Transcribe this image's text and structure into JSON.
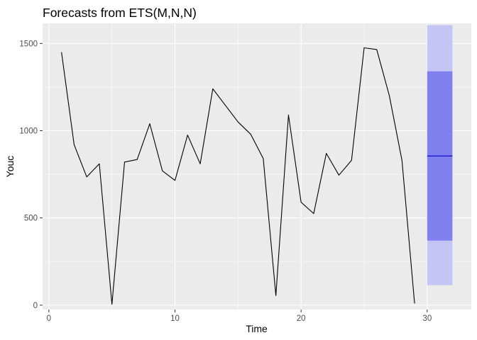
{
  "chart_data": {
    "type": "line",
    "title": "Forecasts from ETS(M,N,N)",
    "xlabel": "Time",
    "ylabel": "Youc",
    "xlim": [
      -0.5,
      33.5
    ],
    "ylim": [
      -25,
      1615
    ],
    "x_ticks": [
      0,
      10,
      20,
      30
    ],
    "y_ticks": [
      0,
      500,
      1000,
      1500
    ],
    "grid": true,
    "legend": "none",
    "colors": {
      "panel_background": "#ebebeb",
      "grid_line": "#ffffff",
      "series_line": "#000000",
      "forecast_mean": "#0000cc",
      "interval_80": "#8080ee",
      "interval_95": "#c4c4f5",
      "tick_mark": "#333333"
    },
    "series": [
      {
        "x": [
          1,
          2,
          3,
          4,
          5,
          6,
          7,
          8,
          9,
          10,
          11,
          12,
          13,
          14,
          15,
          16,
          17,
          18,
          19,
          20,
          21,
          22,
          23,
          24,
          25,
          26,
          27,
          28,
          29
        ],
        "values": [
          1450,
          920,
          735,
          810,
          5,
          820,
          835,
          1040,
          770,
          715,
          975,
          810,
          1240,
          1145,
          1050,
          980,
          840,
          55,
          1090,
          590,
          525,
          870,
          745,
          830,
          1475,
          1465,
          1200,
          830,
          10
        ]
      }
    ],
    "forecast": {
      "x_start": 30,
      "x_end": 32,
      "mean": 855,
      "lower_80": 370,
      "upper_80": 1340,
      "lower_95": 115,
      "upper_95": 1605
    }
  }
}
